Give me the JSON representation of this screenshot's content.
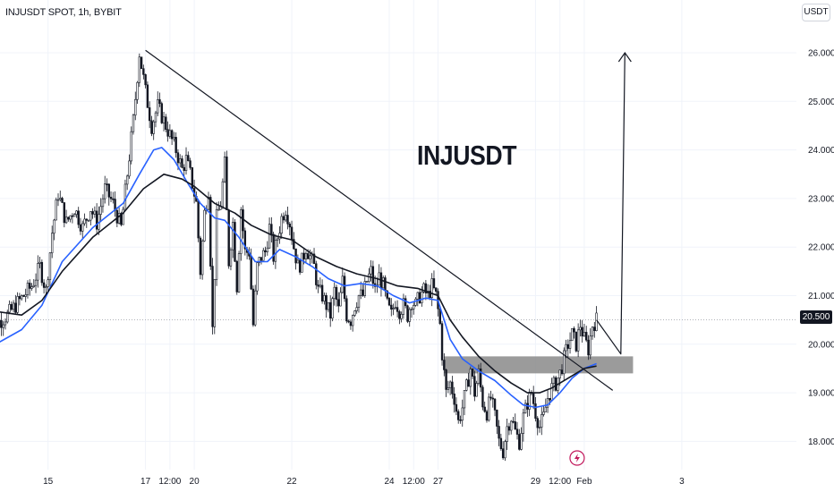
{
  "header": {
    "symbol": "INJUSDT SPOT, 1h, BYBIT",
    "currency": "USDT"
  },
  "annotation_label": "INJUSDT",
  "last_price_label": "20.500",
  "colors": {
    "up": "#131722",
    "down": "#131722",
    "ema_fast": "#2962ff",
    "ema_slow": "#131722",
    "zone": "#8a8a8a",
    "trendline": "#131722",
    "flash_icon": "#c2185b"
  },
  "icons": {
    "event_marker": "lightning-icon"
  },
  "chart_data": {
    "type": "candlestick",
    "title": "",
    "ylim": [
      17.4,
      26.6
    ],
    "grid": true,
    "y_ticks": [
      {
        "value": 26.0,
        "label": "26.000"
      },
      {
        "value": 25.0,
        "label": "25.000"
      },
      {
        "value": 24.0,
        "label": "24.000"
      },
      {
        "value": 23.0,
        "label": "23.000"
      },
      {
        "value": 22.0,
        "label": "22.000"
      },
      {
        "value": 21.0,
        "label": "21.000"
      },
      {
        "value": 20.0,
        "label": "20.000"
      },
      {
        "value": 19.0,
        "label": "19.000"
      },
      {
        "value": 18.0,
        "label": "18.000"
      }
    ],
    "x_ticks": [
      {
        "x": -42,
        "label": "15"
      },
      {
        "x": 6,
        "label": "17"
      },
      {
        "x": 18,
        "label": "12:00"
      },
      {
        "x": 30,
        "label": "20"
      },
      {
        "x": 78,
        "label": "22"
      },
      {
        "x": 126,
        "label": "24"
      },
      {
        "x": 138,
        "label": "12:00"
      },
      {
        "x": 150,
        "label": "27"
      },
      {
        "x": 198,
        "label": "29"
      },
      {
        "x": 210,
        "label": "12:00"
      },
      {
        "x": 222,
        "label": "Feb"
      },
      {
        "x": 270,
        "label": "3"
      }
    ],
    "x_unit": "hours since 17 Jan 00:00",
    "price_points": [
      [
        -72,
        19.7
      ],
      [
        -68,
        20.4
      ],
      [
        -62,
        20.6
      ],
      [
        -56,
        20.9
      ],
      [
        -50,
        21.2
      ],
      [
        -46,
        21.6
      ],
      [
        -43,
        21.1
      ],
      [
        -40,
        22.3
      ],
      [
        -37,
        23.1
      ],
      [
        -33,
        22.5
      ],
      [
        -29,
        22.8
      ],
      [
        -25,
        22.4
      ],
      [
        -21,
        22.8
      ],
      [
        -18,
        22.5
      ],
      [
        -14,
        23.2
      ],
      [
        -10,
        22.9
      ],
      [
        -6,
        22.4
      ],
      [
        -3,
        23.5
      ],
      [
        0,
        24.6
      ],
      [
        3,
        26.0
      ],
      [
        6,
        25.2
      ],
      [
        9,
        24.5
      ],
      [
        12,
        24.9
      ],
      [
        15,
        24.6
      ],
      [
        18,
        24.3
      ],
      [
        21,
        24.0
      ],
      [
        24,
        23.6
      ],
      [
        26,
        23.8
      ],
      [
        28,
        23.5
      ],
      [
        31,
        22.9
      ],
      [
        33,
        21.5
      ],
      [
        35,
        22.7
      ],
      [
        37,
        23.2
      ],
      [
        39,
        20.3
      ],
      [
        41,
        22.6
      ],
      [
        43,
        22.9
      ],
      [
        45,
        23.7
      ],
      [
        47,
        21.7
      ],
      [
        49,
        22.5
      ],
      [
        51,
        21.2
      ],
      [
        53,
        22.8
      ],
      [
        55,
        21.9
      ],
      [
        57,
        21.9
      ],
      [
        59,
        20.4
      ],
      [
        61,
        21.6
      ],
      [
        63,
        21.8
      ],
      [
        65,
        21.9
      ],
      [
        67,
        22.4
      ],
      [
        69,
        21.8
      ],
      [
        71,
        22.2
      ],
      [
        73,
        22.6
      ],
      [
        75,
        22.8
      ],
      [
        77,
        22.5
      ],
      [
        79,
        22.0
      ],
      [
        81,
        21.6
      ],
      [
        83,
        21.7
      ],
      [
        85,
        22.0
      ],
      [
        87,
        21.8
      ],
      [
        89,
        21.6
      ],
      [
        91,
        21.1
      ],
      [
        93,
        21.0
      ],
      [
        95,
        20.8
      ],
      [
        97,
        20.6
      ],
      [
        99,
        21.1
      ],
      [
        101,
        20.7
      ],
      [
        103,
        21.3
      ],
      [
        105,
        20.6
      ],
      [
        107,
        20.5
      ],
      [
        109,
        20.8
      ],
      [
        111,
        21.0
      ],
      [
        113,
        21.0
      ],
      [
        115,
        21.3
      ],
      [
        117,
        21.5
      ],
      [
        119,
        21.1
      ],
      [
        121,
        21.4
      ],
      [
        123,
        21.2
      ],
      [
        125,
        20.8
      ],
      [
        127,
        20.6
      ],
      [
        129,
        20.9
      ],
      [
        131,
        20.7
      ],
      [
        133,
        20.8
      ],
      [
        135,
        20.6
      ],
      [
        137,
        20.9
      ],
      [
        139,
        20.8
      ],
      [
        141,
        21.0
      ],
      [
        143,
        21.1
      ],
      [
        145,
        21.0
      ],
      [
        147,
        21.2
      ],
      [
        149,
        21.0
      ],
      [
        151,
        20.4
      ],
      [
        152,
        19.8
      ],
      [
        154,
        19.0
      ],
      [
        156,
        19.2
      ],
      [
        158,
        18.9
      ],
      [
        160,
        18.4
      ],
      [
        162,
        18.7
      ],
      [
        164,
        19.1
      ],
      [
        166,
        19.5
      ],
      [
        168,
        19.0
      ],
      [
        170,
        19.4
      ],
      [
        172,
        18.8
      ],
      [
        174,
        18.6
      ],
      [
        176,
        18.9
      ],
      [
        178,
        18.5
      ],
      [
        180,
        18.0
      ],
      [
        182,
        17.8
      ],
      [
        184,
        18.3
      ],
      [
        186,
        18.5
      ],
      [
        188,
        18.2
      ],
      [
        190,
        18.0
      ],
      [
        192,
        18.5
      ],
      [
        194,
        18.8
      ],
      [
        196,
        19.0
      ],
      [
        198,
        18.6
      ],
      [
        200,
        18.3
      ],
      [
        202,
        18.5
      ],
      [
        204,
        18.9
      ],
      [
        206,
        19.1
      ],
      [
        208,
        19.2
      ],
      [
        210,
        19.4
      ],
      [
        212,
        19.7
      ],
      [
        214,
        20.0
      ],
      [
        216,
        20.2
      ],
      [
        218,
        20.0
      ],
      [
        220,
        20.4
      ],
      [
        222,
        20.1
      ],
      [
        224,
        19.9
      ],
      [
        226,
        20.4
      ],
      [
        228,
        20.5
      ]
    ],
    "ema_fast": [
      [
        -72,
        19.9
      ],
      [
        -55,
        20.3
      ],
      [
        -45,
        20.8
      ],
      [
        -35,
        21.7
      ],
      [
        -20,
        22.4
      ],
      [
        -5,
        22.9
      ],
      [
        3,
        23.5
      ],
      [
        10,
        24.0
      ],
      [
        14,
        24.05
      ],
      [
        20,
        23.8
      ],
      [
        27,
        23.3
      ],
      [
        33,
        22.9
      ],
      [
        40,
        22.6
      ],
      [
        45,
        22.55
      ],
      [
        52,
        22.2
      ],
      [
        60,
        21.7
      ],
      [
        66,
        21.7
      ],
      [
        72,
        21.95
      ],
      [
        80,
        21.8
      ],
      [
        88,
        21.6
      ],
      [
        96,
        21.35
      ],
      [
        104,
        21.2
      ],
      [
        112,
        21.25
      ],
      [
        120,
        21.2
      ],
      [
        128,
        21.0
      ],
      [
        136,
        20.85
      ],
      [
        144,
        20.95
      ],
      [
        150,
        20.9
      ],
      [
        156,
        20.1
      ],
      [
        162,
        19.7
      ],
      [
        170,
        19.45
      ],
      [
        178,
        19.25
      ],
      [
        186,
        18.95
      ],
      [
        192,
        18.75
      ],
      [
        198,
        18.7
      ],
      [
        204,
        18.75
      ],
      [
        210,
        19.0
      ],
      [
        216,
        19.3
      ],
      [
        222,
        19.5
      ],
      [
        228,
        19.6
      ]
    ],
    "ema_slow": [
      [
        -72,
        20.7
      ],
      [
        -55,
        20.6
      ],
      [
        -45,
        20.9
      ],
      [
        -35,
        21.5
      ],
      [
        -20,
        22.2
      ],
      [
        -5,
        22.7
      ],
      [
        5,
        23.2
      ],
      [
        15,
        23.5
      ],
      [
        24,
        23.4
      ],
      [
        30,
        23.25
      ],
      [
        40,
        22.9
      ],
      [
        50,
        22.7
      ],
      [
        58,
        22.45
      ],
      [
        68,
        22.25
      ],
      [
        78,
        22.15
      ],
      [
        90,
        21.8
      ],
      [
        100,
        21.6
      ],
      [
        110,
        21.45
      ],
      [
        120,
        21.35
      ],
      [
        130,
        21.2
      ],
      [
        140,
        21.15
      ],
      [
        150,
        21.0
      ],
      [
        156,
        20.5
      ],
      [
        162,
        20.15
      ],
      [
        170,
        19.75
      ],
      [
        178,
        19.45
      ],
      [
        186,
        19.2
      ],
      [
        194,
        19.0
      ],
      [
        200,
        19.0
      ],
      [
        206,
        19.1
      ],
      [
        214,
        19.3
      ],
      [
        222,
        19.5
      ],
      [
        228,
        19.55
      ]
    ],
    "trendline": [
      [
        6,
        26.05
      ],
      [
        236,
        19.05
      ]
    ],
    "support_zone": {
      "x": [
        153,
        246
      ],
      "y": [
        19.4,
        19.75
      ]
    },
    "projection_path": [
      [
        228,
        20.5
      ],
      [
        240,
        19.8
      ],
      [
        242,
        26.0
      ]
    ],
    "last_price": 20.5
  }
}
